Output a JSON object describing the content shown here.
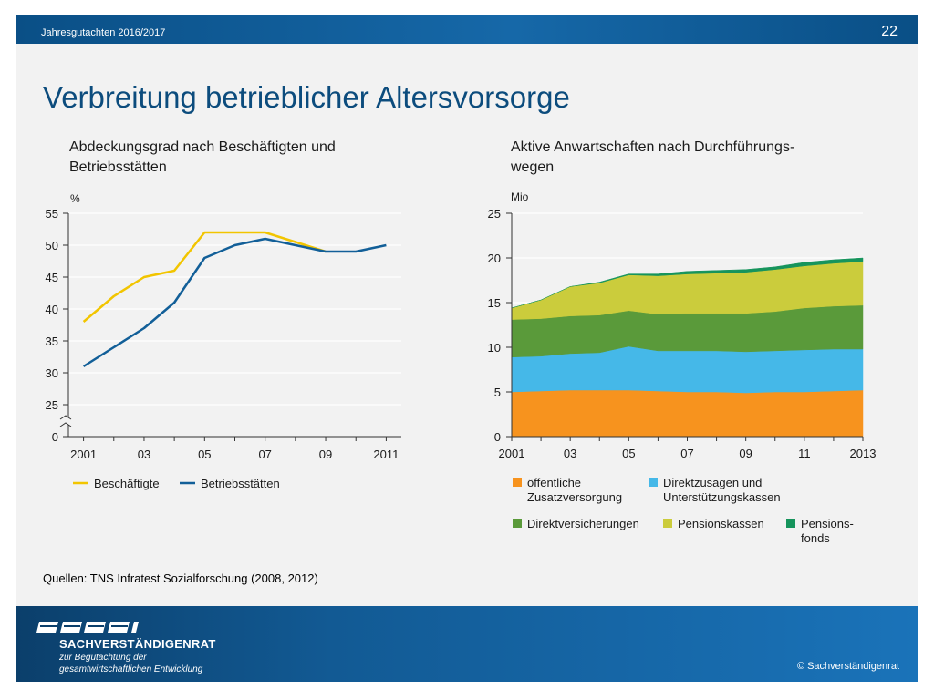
{
  "header": {
    "title": "Jahresgutachten 2016/2017",
    "page_number": "22"
  },
  "main_title": "Verbreitung betrieblicher Altersvorsorge",
  "source": "Quellen: TNS Infratest Sozialforschung (2008, 2012)",
  "footer": {
    "org_name": "SACHVERSTÄNDIGENRAT",
    "org_sub1": "zur Begutachtung der",
    "org_sub2": "gesamtwirtschaftlichen Entwicklung",
    "copyright": "© Sachverständigenrat"
  },
  "chart_data": [
    {
      "type": "line",
      "title": "Abdeckungsgrad nach Beschäftigten und Betriebsstätten",
      "unit": "%",
      "x": [
        2001,
        2002,
        2003,
        2004,
        2005,
        2006,
        2007,
        2008,
        2009,
        2010,
        2011
      ],
      "x_tick_labels": [
        "2001",
        "03",
        "05",
        "07",
        "09",
        "2011"
      ],
      "x_tick_values": [
        2001,
        2003,
        2005,
        2007,
        2009,
        2011
      ],
      "y_tick_labels": [
        "0",
        "25",
        "30",
        "35",
        "40",
        "45",
        "50",
        "55"
      ],
      "ylim": [
        25,
        55
      ],
      "axis_break": true,
      "grid": true,
      "legend_position": "bottom",
      "series": [
        {
          "name": "Beschäftigte",
          "color": "#f2c500",
          "x": [
            2001,
            2002,
            2003,
            2004,
            2005,
            2006,
            2007,
            2008,
            2009
          ],
          "values": [
            38,
            42,
            45,
            46,
            52,
            52,
            52,
            50.5,
            49
          ]
        },
        {
          "name": "Betriebsstätten",
          "color": "#125f98",
          "x": [
            2001,
            2002,
            2003,
            2004,
            2005,
            2006,
            2007,
            2008,
            2009,
            2010,
            2011
          ],
          "values": [
            31,
            34,
            37,
            41,
            48,
            50,
            51,
            50,
            49,
            49,
            50
          ]
        }
      ]
    },
    {
      "type": "area",
      "stacked": true,
      "title": "Aktive Anwartschaften nach Durchführungs-wegen",
      "unit": "Mio",
      "x": [
        2001,
        2002,
        2003,
        2004,
        2005,
        2006,
        2007,
        2008,
        2009,
        2010,
        2011,
        2012,
        2013
      ],
      "x_tick_labels": [
        "2001",
        "03",
        "05",
        "07",
        "09",
        "11",
        "2013"
      ],
      "x_tick_values": [
        2001,
        2003,
        2005,
        2007,
        2009,
        2011,
        2013
      ],
      "y_tick_labels": [
        "0",
        "5",
        "10",
        "15",
        "20",
        "25"
      ],
      "ylim": [
        0,
        25
      ],
      "grid": true,
      "legend_position": "bottom",
      "series": [
        {
          "name": "öffentliche Zusatzversorgung",
          "color": "#f7931e",
          "values": [
            5.0,
            5.1,
            5.2,
            5.2,
            5.2,
            5.1,
            5.0,
            5.0,
            4.9,
            5.0,
            5.0,
            5.1,
            5.2
          ]
        },
        {
          "name": "Direktzusagen und Unterstützungskassen",
          "color": "#45b8e8",
          "values": [
            3.9,
            3.9,
            4.1,
            4.2,
            4.9,
            4.5,
            4.6,
            4.6,
            4.6,
            4.6,
            4.7,
            4.7,
            4.6
          ]
        },
        {
          "name": "Direktversicherungen",
          "color": "#5a9a3a",
          "values": [
            4.2,
            4.2,
            4.2,
            4.2,
            4.0,
            4.1,
            4.2,
            4.2,
            4.3,
            4.4,
            4.7,
            4.8,
            4.9
          ]
        },
        {
          "name": "Pensionskassen",
          "color": "#cbcc3c",
          "values": [
            1.3,
            2.1,
            3.3,
            3.6,
            4.0,
            4.3,
            4.4,
            4.5,
            4.6,
            4.7,
            4.7,
            4.8,
            4.9
          ]
        },
        {
          "name": "Pensions-fonds",
          "color": "#16945c",
          "values": [
            0.0,
            0.0,
            0.0,
            0.1,
            0.1,
            0.2,
            0.3,
            0.3,
            0.3,
            0.3,
            0.4,
            0.4,
            0.4
          ]
        }
      ]
    }
  ]
}
